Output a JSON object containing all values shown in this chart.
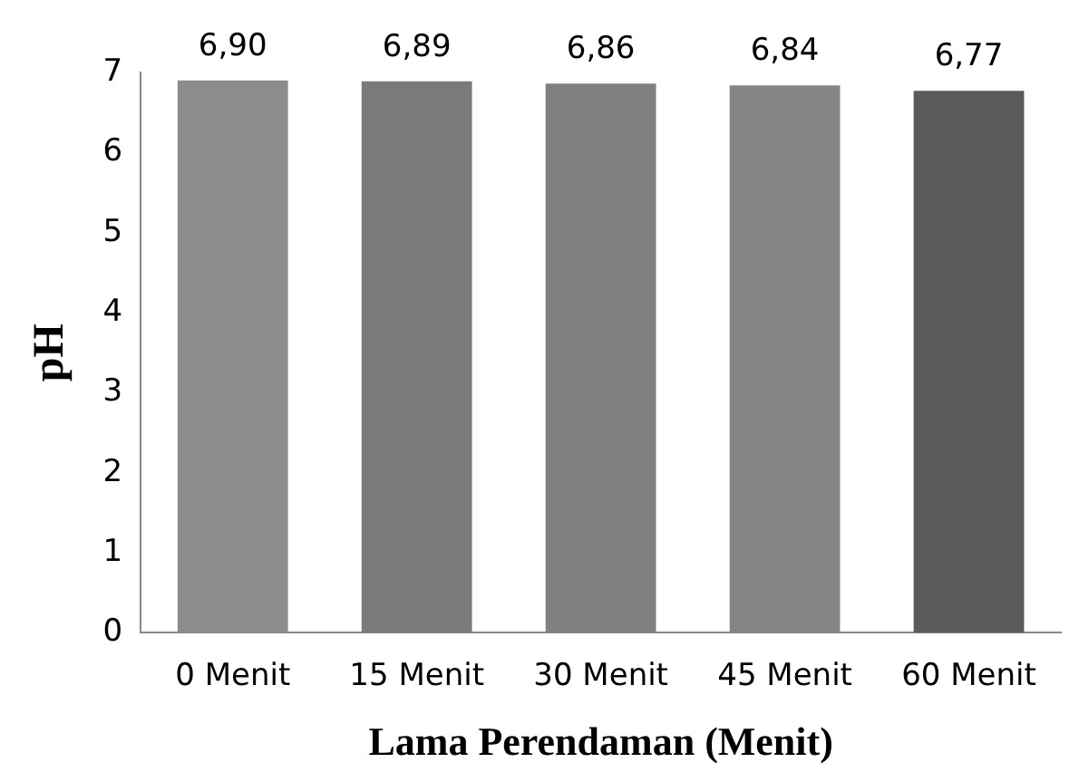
{
  "chart_data": {
    "type": "bar",
    "xlabel": "Lama Perendaman (Menit)",
    "ylabel": "pH",
    "categories": [
      "0 Menit",
      "15 Menit",
      "30 Menit",
      "45 Menit",
      "60 Menit"
    ],
    "values": [
      6.9,
      6.89,
      6.86,
      6.84,
      6.77
    ],
    "value_labels": [
      "6,90",
      "6,89",
      "6,86",
      "6,84",
      "6,77"
    ],
    "colors": [
      "#8c8c8c",
      "#7a7a7a",
      "#808080",
      "#858585",
      "#5a5a5a"
    ],
    "ylim": [
      0,
      7
    ],
    "yticks": [
      0,
      1,
      2,
      3,
      4,
      5,
      6,
      7
    ],
    "grid": false,
    "legend": false
  }
}
